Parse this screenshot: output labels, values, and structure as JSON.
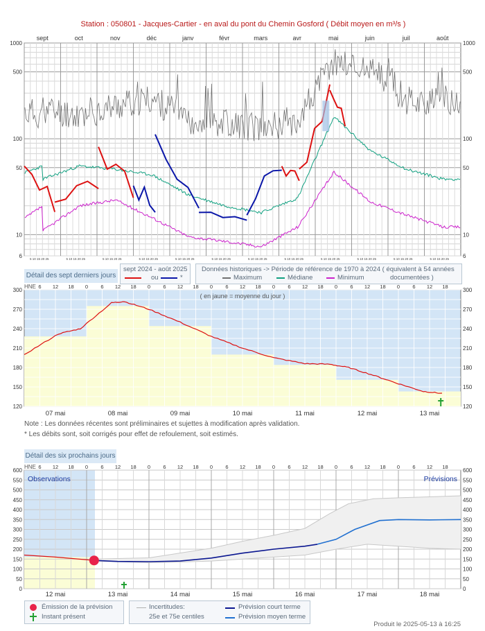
{
  "title": "Station : 050801      -  Jacques-Cartier - en aval du pont du Chemin Gosford   ( Débit moyen en m³/s )",
  "colors": {
    "current": "#dd1111",
    "current_alt": "#0a16a8",
    "maximum": "#707070",
    "median": "#10a080",
    "minimum": "#cc22cc",
    "observed_band": "#d0e4f5",
    "daily_mean": "#fbfdd6",
    "forecast_short": "#0a1690",
    "forecast_medium": "#2070d0",
    "uncertainty": "#c8c8c8",
    "marker_emission": "#e8234a",
    "marker_present": "#22a033"
  },
  "panel1": {
    "months": [
      "sept",
      "oct",
      "nov",
      "déc",
      "janv",
      "févr",
      "mars",
      "avr",
      "mai",
      "juin",
      "juil",
      "août"
    ],
    "yticks": [
      "1000",
      "500",
      "100",
      "50",
      "10",
      "6"
    ],
    "day_ticks": "5 10 15 20 25",
    "detail_button": "Détail des sept derniers jours",
    "legend_a": {
      "period": "sept 2024 - août 2025",
      "or": "ou",
      "asterisk": "*"
    },
    "legend_b": {
      "header": "Données historiques -> Période de référence  de 1970 à 2024   ( équivalent à 54 années",
      "maximum": "Maximum",
      "median": "Médiane",
      "minimum": "Minimum",
      "documented": "documentées )"
    }
  },
  "panel2": {
    "hne": "HNE",
    "hour_ticks": [
      "6",
      "12",
      "18",
      "0",
      "6",
      "12",
      "18",
      "0",
      "6",
      "12",
      "18",
      "0",
      "6",
      "12",
      "18",
      "0",
      "6",
      "12",
      "18",
      "0",
      "6",
      "12",
      "18",
      "0",
      "6",
      "12",
      "18"
    ],
    "yticks": [
      "300",
      "270",
      "240",
      "210",
      "180",
      "150",
      "120"
    ],
    "days": [
      "07 mai",
      "08 mai",
      "09 mai",
      "10 mai",
      "11 mai",
      "12 mai",
      "13 mai"
    ],
    "annotation": "( en jaune = moyenne du jour )"
  },
  "notes": [
    "Note : Les données récentes sont préliminaires et sujettes à modification après validation.",
    "* Les débits sont, soit corrigés pour effet de refoulement, soit estimés."
  ],
  "panel3": {
    "detail_button": "Détail des six prochains jours",
    "hne": "HNE",
    "hour_ticks": [
      "6",
      "12",
      "18",
      "0",
      "6",
      "12",
      "18",
      "0",
      "6",
      "12",
      "18",
      "0",
      "6",
      "12",
      "18",
      "0",
      "6",
      "12",
      "18",
      "0",
      "6",
      "12",
      "18",
      "0",
      "6",
      "12",
      "18"
    ],
    "yticks": [
      "600",
      "550",
      "500",
      "450",
      "400",
      "350",
      "300",
      "250",
      "200",
      "150",
      "100",
      "50",
      "0"
    ],
    "days": [
      "12 mai",
      "13 mai",
      "14 mai",
      "15 mai",
      "16 mai",
      "17 mai",
      "18 mai"
    ],
    "observations_label": "Observations",
    "previsions_label": "Prévisions",
    "legend": {
      "emission": "Émission de la prévision",
      "present": "Instant présent",
      "uncertainties": "Incertitudes:",
      "centiles": "25e et 75e centiles",
      "short_term": "Prévision court terme",
      "medium_term": "Prévision moyen terme"
    }
  },
  "credit": "Produit le 2025-05-13 à 16:25",
  "chart_data": [
    {
      "type": "line",
      "title": "Station : 050801      -  Jacques-Cartier - en aval du pont du Chemin Gosford   ( Débit moyen en m³/s )",
      "xlabel": "",
      "ylabel": "",
      "y_scale": "log",
      "ylim": [
        6,
        1000
      ],
      "categories": [
        "sept",
        "oct",
        "nov",
        "déc",
        "janv",
        "févr",
        "mars",
        "avr",
        "mai",
        "juin",
        "juil",
        "août"
      ],
      "series": [
        {
          "name": "Maximum",
          "values": [
            200,
            180,
            220,
            260,
            160,
            150,
            130,
            160,
            650,
            520,
            260,
            230
          ]
        },
        {
          "name": "Médiane",
          "values": [
            38,
            52,
            48,
            42,
            26,
            20,
            17,
            24,
            170,
            75,
            48,
            38
          ]
        },
        {
          "name": "Minimum",
          "values": [
            11,
            20,
            23,
            15,
            9.5,
            8.5,
            7.5,
            12,
            45,
            22,
            16,
            12
          ]
        },
        {
          "name": "sept 2024 - août 2025",
          "values": [
            45,
            28,
            35,
            null,
            null,
            null,
            null,
            45,
            200,
            null,
            null,
            null
          ]
        }
      ]
    },
    {
      "type": "line",
      "xlabel": "",
      "ylabel": "",
      "ylim": [
        120,
        300
      ],
      "categories": [
        "07 mai",
        "08 mai",
        "09 mai",
        "10 mai",
        "11 mai",
        "12 mai",
        "13 mai"
      ],
      "series": [
        {
          "name": "",
          "values": [
            228,
            278,
            243,
            201,
            186,
            161,
            142
          ]
        }
      ],
      "daily_mean": [
        228,
        275,
        244,
        200,
        184,
        161,
        143
      ]
    },
    {
      "type": "line",
      "xlabel": "",
      "ylabel": "",
      "ylim": [
        0,
        600
      ],
      "categories": [
        "12 mai",
        "13 mai",
        "14 mai",
        "15 mai",
        "16 mai",
        "17 mai",
        "18 mai"
      ],
      "series": [
        {
          "name": "",
          "values": [
            170,
            143,
            null,
            null,
            null,
            null,
            null
          ]
        },
        {
          "name": "Prévision court terme",
          "values": [
            null,
            143,
            140,
            160,
            200,
            235,
            null
          ]
        },
        {
          "name": "Prévision moyen terme",
          "values": [
            null,
            null,
            null,
            null,
            210,
            340,
            345
          ]
        },
        {
          "name": "Incertitudes: 25e et 75e centiles (haut)",
          "values": [
            null,
            150,
            155,
            205,
            300,
            440,
            465
          ]
        },
        {
          "name": "Incertitudes: 25e et 75e centiles (bas)",
          "values": [
            null,
            140,
            132,
            140,
            160,
            220,
            200
          ]
        }
      ]
    }
  ]
}
